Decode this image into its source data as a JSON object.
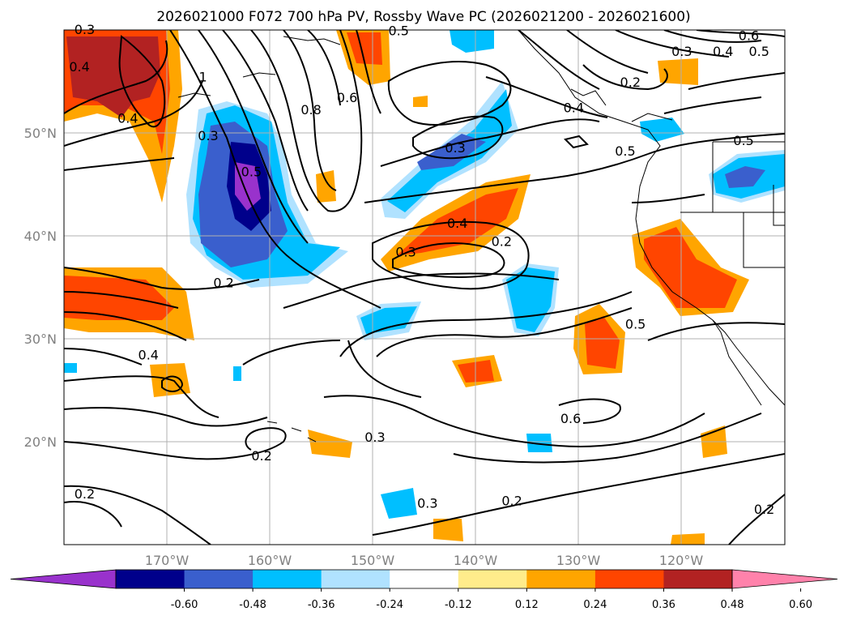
{
  "title": "2026021000 F072 700 hPa PV, Rossby Wave PC (2026021200 - 2026021600)",
  "map": {
    "lon_range": [
      -180,
      -110
    ],
    "lat_range": [
      10,
      60
    ],
    "lon_ticks": [
      {
        "value": -170,
        "label": "170°W"
      },
      {
        "value": -160,
        "label": "160°W"
      },
      {
        "value": -150,
        "label": "150°W"
      },
      {
        "value": -140,
        "label": "140°W"
      },
      {
        "value": -130,
        "label": "130°W"
      },
      {
        "value": -120,
        "label": "120°W"
      }
    ],
    "lat_ticks": [
      {
        "value": 20,
        "label": "20°N"
      },
      {
        "value": 30,
        "label": "30°N"
      },
      {
        "value": 40,
        "label": "40°N"
      },
      {
        "value": 50,
        "label": "50°N"
      }
    ],
    "gridlines": true
  },
  "contour_labels": [
    {
      "text": "0.3",
      "lon": -178.0,
      "lat": 59.6
    },
    {
      "text": "0.4",
      "lon": -178.5,
      "lat": 56.0
    },
    {
      "text": "0.5",
      "lon": -147.5,
      "lat": 59.5
    },
    {
      "text": "0.6",
      "lon": -113.5,
      "lat": 59.0
    },
    {
      "text": "0.5",
      "lon": -112.5,
      "lat": 57.5
    },
    {
      "text": "0.4",
      "lon": -116.0,
      "lat": 57.5
    },
    {
      "text": "0.3",
      "lon": -120.0,
      "lat": 57.5
    },
    {
      "text": "1",
      "lon": -166.5,
      "lat": 55.0
    },
    {
      "text": "0.6",
      "lon": -152.5,
      "lat": 53.0
    },
    {
      "text": "0.8",
      "lon": -156.0,
      "lat": 51.8
    },
    {
      "text": "0.2",
      "lon": -125.0,
      "lat": 54.5
    },
    {
      "text": "0.4",
      "lon": -130.5,
      "lat": 52.0
    },
    {
      "text": "0.4",
      "lon": -173.8,
      "lat": 51.0
    },
    {
      "text": "0.3",
      "lon": -166.0,
      "lat": 49.3
    },
    {
      "text": "0.5",
      "lon": -161.8,
      "lat": 45.8
    },
    {
      "text": "0.3",
      "lon": -142.0,
      "lat": 48.1
    },
    {
      "text": "0.5",
      "lon": -125.5,
      "lat": 47.8
    },
    {
      "text": "0.5",
      "lon": -114.0,
      "lat": 48.8
    },
    {
      "text": "0.4",
      "lon": -141.8,
      "lat": 40.8
    },
    {
      "text": "0.2",
      "lon": -137.5,
      "lat": 39.0
    },
    {
      "text": "0.3",
      "lon": -146.8,
      "lat": 38.0
    },
    {
      "text": "0.2",
      "lon": -164.5,
      "lat": 35.0
    },
    {
      "text": "0.5",
      "lon": -124.5,
      "lat": 31.0
    },
    {
      "text": "0.4",
      "lon": -171.8,
      "lat": 28.0
    },
    {
      "text": "0.6",
      "lon": -130.8,
      "lat": 21.8
    },
    {
      "text": "0.3",
      "lon": -149.8,
      "lat": 20.0
    },
    {
      "text": "0.2",
      "lon": -160.8,
      "lat": 18.2
    },
    {
      "text": "0.2",
      "lon": -178.0,
      "lat": 14.5
    },
    {
      "text": "0.3",
      "lon": -144.7,
      "lat": 13.6
    },
    {
      "text": "0.2",
      "lon": -136.5,
      "lat": 13.8
    },
    {
      "text": "0.2",
      "lon": -112.0,
      "lat": 13.0
    }
  ],
  "colorbar": {
    "ticks": [
      "-0.60",
      "-0.48",
      "-0.36",
      "-0.24",
      "-0.12",
      "0.12",
      "0.24",
      "0.36",
      "0.48",
      "0.60"
    ],
    "colors": [
      "#9932cc",
      "#00008b",
      "#3a5fcd",
      "#00bfff",
      "#b0e2ff",
      "#ffffff",
      "#ffec8b",
      "#ffa500",
      "#ff4500",
      "#b22222",
      "#ff82ab"
    ],
    "extend": "both"
  }
}
